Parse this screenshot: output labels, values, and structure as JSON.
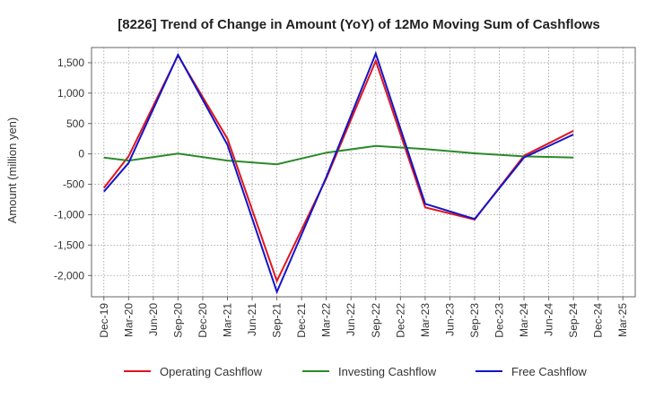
{
  "chart_data": {
    "type": "line",
    "title": "[8226]  Trend of Change in Amount (YoY) of 12Mo Moving Sum of Cashflows",
    "xlabel": "",
    "ylabel": "Amount (million yen)",
    "ylim": [
      -2350,
      1750
    ],
    "yticks": [
      1500,
      1000,
      500,
      0,
      -500,
      -1000,
      -1500,
      -2000
    ],
    "ytick_labels": [
      "1,500",
      "1,000",
      "500",
      "0",
      "-500",
      "-1,000",
      "-1,500",
      "-2,000"
    ],
    "categories": [
      "Dec-19",
      "Mar-20",
      "Jun-20",
      "Sep-20",
      "Dec-20",
      "Mar-21",
      "Jun-21",
      "Sep-21",
      "Dec-21",
      "Mar-22",
      "Jun-22",
      "Sep-22",
      "Dec-22",
      "Mar-23",
      "Jun-23",
      "Sep-23",
      "Dec-23",
      "Mar-24",
      "Jun-24",
      "Sep-24",
      "Dec-24",
      "Mar-25"
    ],
    "grid": true,
    "legend_position": "bottom",
    "series": [
      {
        "name": "Operating Cashflow",
        "color": "#e0141e",
        "points": [
          [
            0,
            -560
          ],
          [
            1,
            -40
          ],
          [
            3,
            1620
          ],
          [
            5,
            250
          ],
          [
            7,
            -2090
          ],
          [
            9,
            -400
          ],
          [
            11,
            1530
          ],
          [
            13,
            -880
          ],
          [
            15,
            -1080
          ],
          [
            17,
            -30
          ],
          [
            19,
            380
          ]
        ]
      },
      {
        "name": "Investing Cashflow",
        "color": "#2a8a2a",
        "points": [
          [
            0,
            -60
          ],
          [
            1,
            -110
          ],
          [
            3,
            5
          ],
          [
            5,
            -110
          ],
          [
            7,
            -170
          ],
          [
            9,
            20
          ],
          [
            11,
            130
          ],
          [
            13,
            80
          ],
          [
            15,
            10
          ],
          [
            17,
            -40
          ],
          [
            19,
            -60
          ]
        ]
      },
      {
        "name": "Free Cashflow",
        "color": "#1414c8",
        "points": [
          [
            0,
            -620
          ],
          [
            1,
            -150
          ],
          [
            3,
            1630
          ],
          [
            5,
            150
          ],
          [
            7,
            -2270
          ],
          [
            9,
            -380
          ],
          [
            11,
            1650
          ],
          [
            13,
            -820
          ],
          [
            15,
            -1070
          ],
          [
            17,
            -60
          ],
          [
            19,
            320
          ]
        ]
      }
    ]
  }
}
